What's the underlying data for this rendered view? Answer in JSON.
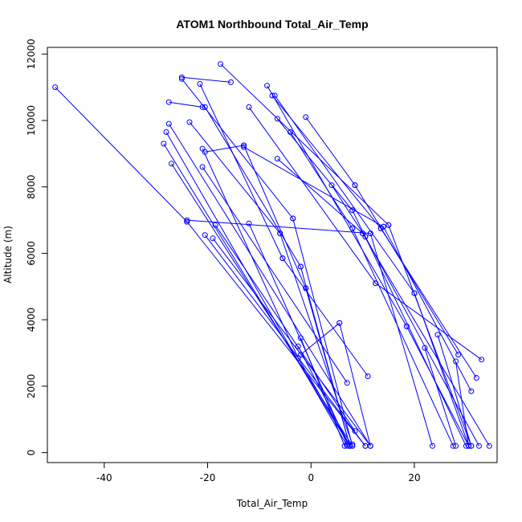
{
  "chart_data": {
    "type": "line",
    "title": "ATOM1 Northbound Total_Air_Temp",
    "xlabel": "Total_Air_Temp",
    "ylabel": "Altitude (m)",
    "xlim": [
      -51,
      36
    ],
    "ylim": [
      -300,
      12200
    ],
    "x_ticks": [
      -40,
      -20,
      0,
      20
    ],
    "y_ticks": [
      0,
      2000,
      4000,
      6000,
      8000,
      10000,
      12000
    ],
    "grid": false,
    "color": "#0000ff",
    "series": [
      {
        "x": [
          -49.5,
          -24
        ],
        "y": [
          11000,
          6950
        ]
      },
      {
        "x": [
          -24,
          10.5
        ],
        "y": [
          6950,
          200
        ]
      },
      {
        "x": [
          -27,
          8
        ],
        "y": [
          8700,
          200
        ]
      },
      {
        "x": [
          -28,
          7
        ],
        "y": [
          9650,
          200
        ]
      },
      {
        "x": [
          -28.5,
          7.5
        ],
        "y": [
          9300,
          200
        ]
      },
      {
        "x": [
          -27.5,
          11.5
        ],
        "y": [
          9900,
          200
        ]
      },
      {
        "x": [
          -20.5,
          10.5
        ],
        "y": [
          6550,
          200
        ]
      },
      {
        "x": [
          -19,
          11.5
        ],
        "y": [
          6450,
          200
        ]
      },
      {
        "x": [
          -18.5,
          8.5
        ],
        "y": [
          6850,
          650
        ]
      },
      {
        "x": [
          -21,
          7
        ],
        "y": [
          8600,
          2100
        ]
      },
      {
        "x": [
          -25,
          -15.5
        ],
        "y": [
          11300,
          11150
        ]
      },
      {
        "x": [
          -25,
          -3.5
        ],
        "y": [
          11250,
          7050
        ]
      },
      {
        "x": [
          -3.5,
          8
        ],
        "y": [
          7050,
          200
        ]
      },
      {
        "x": [
          -27.5,
          -21
        ],
        "y": [
          10550,
          10400
        ]
      },
      {
        "x": [
          -20.5,
          -13
        ],
        "y": [
          9050,
          9250
        ]
      },
      {
        "x": [
          -21,
          -2.5
        ],
        "y": [
          9150,
          2850
        ]
      },
      {
        "x": [
          -2.5,
          7.5
        ],
        "y": [
          2850,
          200
        ]
      },
      {
        "x": [
          -23.5,
          -6
        ],
        "y": [
          9950,
          6600
        ]
      },
      {
        "x": [
          -6,
          8
        ],
        "y": [
          6600,
          250
        ]
      },
      {
        "x": [
          -12,
          7
        ],
        "y": [
          6900,
          250
        ]
      },
      {
        "x": [
          -21.5,
          -5.5
        ],
        "y": [
          11100,
          5850
        ]
      },
      {
        "x": [
          -5.5,
          11
        ],
        "y": [
          5850,
          2300
        ]
      },
      {
        "x": [
          -20.5,
          -2
        ],
        "y": [
          10400,
          5600
        ]
      },
      {
        "x": [
          -2,
          7.5
        ],
        "y": [
          5600,
          200
        ]
      },
      {
        "x": [
          -13,
          -1
        ],
        "y": [
          9250,
          4950
        ]
      },
      {
        "x": [
          -1,
          7.5
        ],
        "y": [
          4950,
          200
        ]
      },
      {
        "x": [
          -17.5,
          15
        ],
        "y": [
          11700,
          6850
        ]
      },
      {
        "x": [
          15,
          31
        ],
        "y": [
          6850,
          200
        ]
      },
      {
        "x": [
          -12,
          12.5
        ],
        "y": [
          10400,
          5100
        ]
      },
      {
        "x": [
          12.5,
          33
        ],
        "y": [
          5100,
          2800
        ]
      },
      {
        "x": [
          -8.5,
          18.5
        ],
        "y": [
          11050,
          3800
        ]
      },
      {
        "x": [
          18.5,
          30.5
        ],
        "y": [
          3800,
          200
        ]
      },
      {
        "x": [
          -7.5,
          13.5
        ],
        "y": [
          10750,
          6750
        ]
      },
      {
        "x": [
          13.5,
          32
        ],
        "y": [
          6750,
          2250
        ]
      },
      {
        "x": [
          -7,
          20
        ],
        "y": [
          10750,
          4800
        ]
      },
      {
        "x": [
          20,
          30.5
        ],
        "y": [
          4800,
          200
        ]
      },
      {
        "x": [
          -6.5,
          8
        ],
        "y": [
          10050,
          7300
        ]
      },
      {
        "x": [
          8,
          30
        ],
        "y": [
          7300,
          200
        ]
      },
      {
        "x": [
          -6.5,
          10
        ],
        "y": [
          8850,
          6600
        ]
      },
      {
        "x": [
          10,
          34.5
        ],
        "y": [
          6600,
          200
        ]
      },
      {
        "x": [
          -4,
          8
        ],
        "y": [
          9650,
          6750
        ]
      },
      {
        "x": [
          8,
          27.5
        ],
        "y": [
          6750,
          200
        ]
      },
      {
        "x": [
          -1,
          8.5
        ],
        "y": [
          10100,
          8050
        ]
      },
      {
        "x": [
          8.5,
          28.5
        ],
        "y": [
          8050,
          2950
        ]
      },
      {
        "x": [
          4,
          10.5
        ],
        "y": [
          8050,
          6500
        ]
      },
      {
        "x": [
          10.5,
          32.5
        ],
        "y": [
          6500,
          200
        ]
      },
      {
        "x": [
          -13,
          14
        ],
        "y": [
          9200,
          6800
        ]
      },
      {
        "x": [
          14,
          31
        ],
        "y": [
          6800,
          1850
        ]
      },
      {
        "x": [
          -24,
          11.5
        ],
        "y": [
          7000,
          6600
        ]
      },
      {
        "x": [
          11.5,
          23.5
        ],
        "y": [
          6600,
          200
        ]
      },
      {
        "x": [
          -2,
          6.5
        ],
        "y": [
          3450,
          200
        ]
      },
      {
        "x": [
          -2.5,
          7.5
        ],
        "y": [
          3200,
          200
        ]
      },
      {
        "x": [
          -2,
          5.5
        ],
        "y": [
          2950,
          3900
        ]
      },
      {
        "x": [
          5.5,
          11.5
        ],
        "y": [
          3900,
          200
        ]
      },
      {
        "x": [
          22,
          28
        ],
        "y": [
          3150,
          200
        ]
      },
      {
        "x": [
          24.5,
          31
        ],
        "y": [
          3550,
          200
        ]
      },
      {
        "x": [
          28,
          30.5
        ],
        "y": [
          2750,
          200
        ]
      }
    ]
  }
}
